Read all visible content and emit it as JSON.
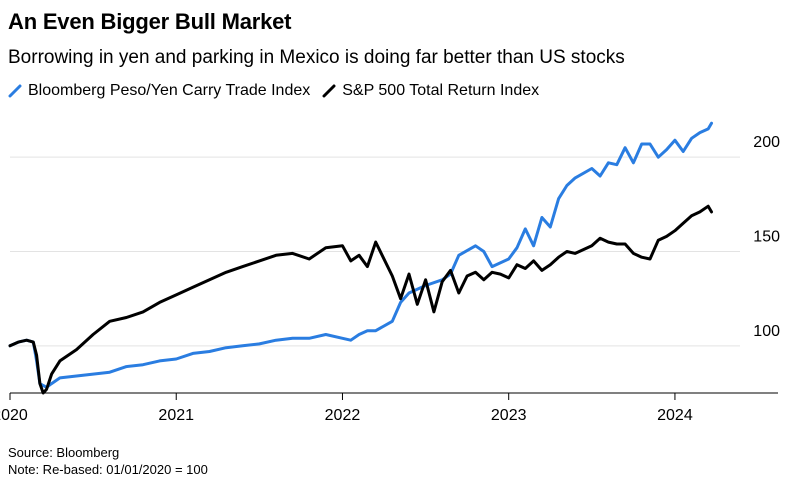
{
  "title": "An Even Bigger Bull Market",
  "subtitle": "Borrowing in yen and parking in Mexico is doing far better than US stocks",
  "source": "Source: Bloomberg",
  "note": "Note: Re-based: 01/01/2020 = 100",
  "chart_data": {
    "type": "line",
    "title": "An Even Bigger Bull Market",
    "subtitle": "Borrowing in yen and parking in Mexico is doing far better than US stocks",
    "xlabel": "",
    "ylabel": "",
    "xlim": [
      2020.0,
      2024.62
    ],
    "ylim": [
      75,
      225
    ],
    "x_ticks": [
      "2020",
      "2021",
      "2022",
      "2023",
      "2024"
    ],
    "y_ticks": [
      "100",
      "150",
      "200"
    ],
    "y_axis_side": "right",
    "grid": "horizontal",
    "legend_position": "top-left",
    "series": [
      {
        "name": "Bloomberg Peso/Yen Carry Trade Index",
        "color": "#2a7de1",
        "x": [
          2020.0,
          2020.05,
          2020.1,
          2020.14,
          2020.16,
          2020.18,
          2020.2,
          2020.22,
          2020.25,
          2020.3,
          2020.4,
          2020.5,
          2020.6,
          2020.7,
          2020.8,
          2020.9,
          2021.0,
          2021.1,
          2021.2,
          2021.3,
          2021.4,
          2021.5,
          2021.6,
          2021.7,
          2021.8,
          2021.9,
          2022.0,
          2022.05,
          2022.1,
          2022.15,
          2022.2,
          2022.3,
          2022.35,
          2022.4,
          2022.5,
          2022.6,
          2022.65,
          2022.7,
          2022.8,
          2022.85,
          2022.9,
          2023.0,
          2023.05,
          2023.1,
          2023.15,
          2023.2,
          2023.25,
          2023.3,
          2023.35,
          2023.4,
          2023.5,
          2023.55,
          2023.6,
          2023.65,
          2023.7,
          2023.75,
          2023.8,
          2023.85,
          2023.9,
          2023.95,
          2024.0,
          2024.05,
          2024.1,
          2024.15,
          2024.2,
          2024.22
        ],
        "values": [
          100,
          102,
          103,
          102,
          92,
          80,
          79,
          78,
          80,
          83,
          84,
          85,
          86,
          89,
          90,
          92,
          93,
          96,
          97,
          99,
          100,
          101,
          103,
          104,
          104,
          106,
          104,
          103,
          106,
          108,
          108,
          113,
          123,
          128,
          132,
          135,
          138,
          148,
          153,
          150,
          142,
          146,
          152,
          162,
          153,
          168,
          163,
          178,
          185,
          189,
          194,
          190,
          197,
          196,
          205,
          197,
          207,
          207,
          200,
          204,
          209,
          203,
          210,
          213,
          215,
          218
        ]
      },
      {
        "name": "S&P 500 Total Return Index",
        "color": "#000000",
        "x": [
          2020.0,
          2020.05,
          2020.1,
          2020.14,
          2020.16,
          2020.18,
          2020.2,
          2020.22,
          2020.25,
          2020.3,
          2020.4,
          2020.5,
          2020.6,
          2020.7,
          2020.8,
          2020.9,
          2021.0,
          2021.1,
          2021.2,
          2021.3,
          2021.4,
          2021.5,
          2021.6,
          2021.7,
          2021.8,
          2021.9,
          2022.0,
          2022.05,
          2022.1,
          2022.15,
          2022.2,
          2022.3,
          2022.35,
          2022.4,
          2022.45,
          2022.5,
          2022.55,
          2022.6,
          2022.65,
          2022.7,
          2022.75,
          2022.8,
          2022.85,
          2022.9,
          2022.95,
          2023.0,
          2023.05,
          2023.1,
          2023.15,
          2023.2,
          2023.25,
          2023.3,
          2023.35,
          2023.4,
          2023.5,
          2023.55,
          2023.6,
          2023.65,
          2023.7,
          2023.75,
          2023.8,
          2023.85,
          2023.9,
          2023.95,
          2024.0,
          2024.05,
          2024.1,
          2024.15,
          2024.2,
          2024.22
        ],
        "values": [
          100,
          102,
          103,
          102,
          95,
          80,
          75,
          77,
          85,
          92,
          98,
          106,
          113,
          115,
          118,
          123,
          127,
          131,
          135,
          139,
          142,
          145,
          148,
          149,
          146,
          152,
          153,
          145,
          148,
          142,
          155,
          137,
          125,
          138,
          122,
          135,
          118,
          134,
          140,
          128,
          137,
          139,
          135,
          139,
          138,
          136,
          143,
          141,
          145,
          140,
          143,
          147,
          150,
          149,
          153,
          157,
          155,
          154,
          154,
          149,
          147,
          146,
          156,
          158,
          161,
          165,
          169,
          171,
          174,
          171
        ]
      }
    ]
  }
}
